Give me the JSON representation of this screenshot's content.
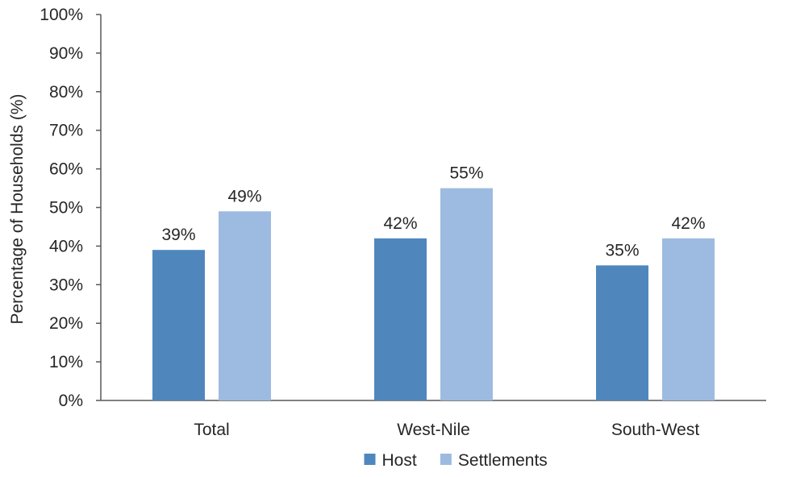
{
  "chart_data": {
    "type": "bar",
    "title": "",
    "xlabel": "",
    "ylabel": "Percentage of Households (%)",
    "ylim": [
      0,
      100
    ],
    "yticks": [
      "0%",
      "10%",
      "20%",
      "30%",
      "40%",
      "50%",
      "60%",
      "70%",
      "80%",
      "90%",
      "100%"
    ],
    "categories": [
      "Total",
      "West-Nile",
      "South-West"
    ],
    "series": [
      {
        "name": "Host",
        "values": [
          39,
          42,
          35
        ],
        "labels": [
          "39%",
          "42%",
          "35%"
        ],
        "color": "#4f87bd"
      },
      {
        "name": "Settlements",
        "values": [
          49,
          55,
          42
        ],
        "labels": [
          "49%",
          "55%",
          "42%"
        ],
        "color": "#9dbbe0"
      }
    ],
    "grid": false,
    "legend": "bottom"
  }
}
